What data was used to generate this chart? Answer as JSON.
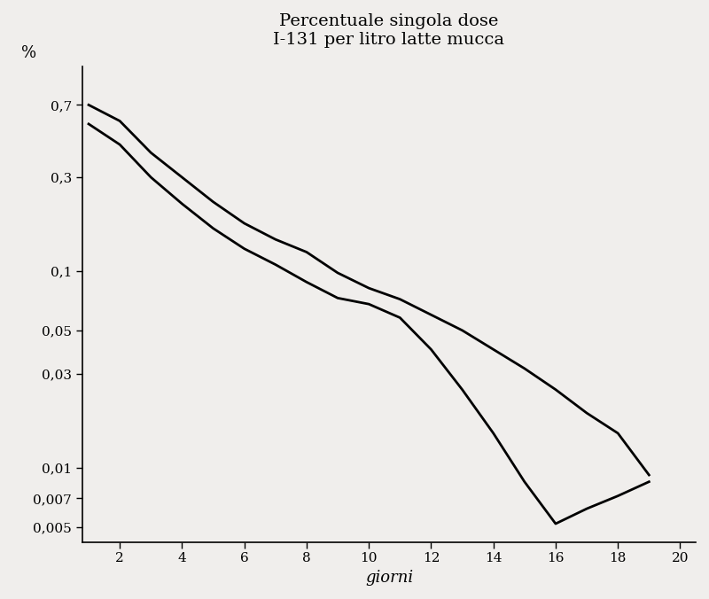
{
  "title_line1": "Percentuale singola dose",
  "title_line2": "I-131 per litro latte mucca",
  "xlabel": "giorni",
  "ylabel": "%",
  "background_color": "#f0eeec",
  "line_color": "#000000",
  "yticks": [
    0.005,
    0.007,
    0.01,
    0.03,
    0.05,
    0.1,
    0.3,
    0.7
  ],
  "ytick_labels": [
    "0,005",
    "0,007",
    "0,01",
    "0,03",
    "0,05",
    "0,1",
    "0,3",
    "0,7"
  ],
  "xticks": [
    2,
    4,
    6,
    8,
    10,
    12,
    14,
    16,
    18,
    20
  ],
  "xlim": [
    0.8,
    20.5
  ],
  "ylim": [
    0.0042,
    1.1
  ],
  "curve1_x": [
    1,
    2,
    3,
    4,
    5,
    6,
    7,
    8,
    9,
    10,
    11,
    12,
    13,
    14,
    15,
    16,
    17,
    18,
    19
  ],
  "curve1_y": [
    0.7,
    0.58,
    0.4,
    0.3,
    0.225,
    0.175,
    0.145,
    0.125,
    0.098,
    0.082,
    0.072,
    0.06,
    0.05,
    0.04,
    0.032,
    0.025,
    0.019,
    0.015,
    0.0092
  ],
  "curve2_x": [
    1,
    2,
    3,
    4,
    5,
    6,
    7,
    8,
    9,
    10,
    11,
    12,
    13,
    14,
    15,
    16,
    17,
    18,
    19
  ],
  "curve2_y": [
    0.56,
    0.44,
    0.3,
    0.22,
    0.165,
    0.13,
    0.108,
    0.088,
    0.073,
    0.068,
    0.058,
    0.04,
    0.025,
    0.015,
    0.0085,
    0.0052,
    0.0062,
    0.0072,
    0.0085
  ]
}
